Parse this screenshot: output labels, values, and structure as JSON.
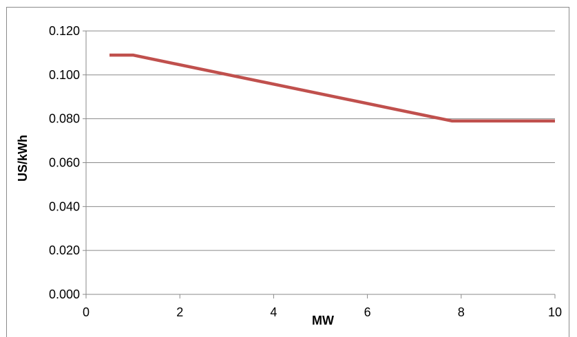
{
  "chart_data": {
    "type": "line",
    "title": "",
    "xlabel": "MW",
    "ylabel": "US/kWh",
    "xlim": [
      0,
      10
    ],
    "ylim": [
      0,
      0.12
    ],
    "x_ticks": [
      "0",
      "2",
      "4",
      "6",
      "8",
      "10"
    ],
    "y_ticks": [
      "0.000",
      "0.020",
      "0.040",
      "0.060",
      "0.080",
      "0.100",
      "0.120"
    ],
    "grid": "horizontal",
    "legend": "none",
    "series": [
      {
        "color": "#c0504d",
        "x": [
          0.5,
          1.0,
          7.8,
          10.0
        ],
        "y": [
          0.109,
          0.109,
          0.079,
          0.079
        ]
      }
    ]
  }
}
